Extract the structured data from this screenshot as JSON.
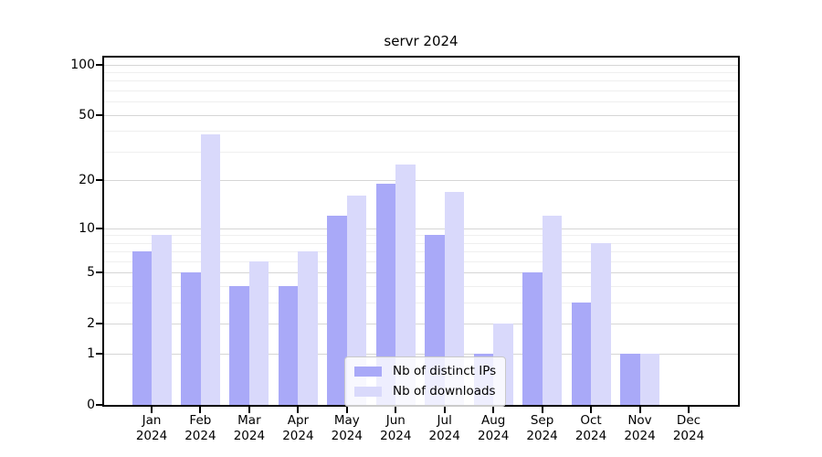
{
  "chart_data": {
    "type": "bar",
    "title": "servr 2024",
    "categories": [
      "Jan",
      "Feb",
      "Mar",
      "Apr",
      "May",
      "Jun",
      "Jul",
      "Aug",
      "Sep",
      "Oct",
      "Nov",
      "Dec"
    ],
    "x_sublabel": "2024",
    "series": [
      {
        "name": "Nb of distinct IPs",
        "color": "#a9a9f8",
        "values": [
          7,
          5,
          4,
          4,
          12,
          19,
          9,
          1,
          5,
          3,
          1,
          0
        ]
      },
      {
        "name": "Nb of downloads",
        "color": "#d9d9fb",
        "values": [
          9,
          38,
          6,
          7,
          16,
          25,
          17,
          2,
          12,
          8,
          1,
          0
        ]
      }
    ],
    "yscale": "log1p",
    "ylim": [
      0,
      110
    ],
    "yticks": [
      0,
      1,
      2,
      5,
      10,
      20,
      50,
      100
    ],
    "yminorticks": [
      3,
      4,
      6,
      7,
      8,
      9,
      30,
      40,
      60,
      70,
      80,
      90
    ],
    "grid": true,
    "legend_position": "bottom-center",
    "colors": {
      "grid_major": "#d6d6d6",
      "grid_minor": "#efefef",
      "spine": "#000000",
      "text": "#000000"
    }
  }
}
